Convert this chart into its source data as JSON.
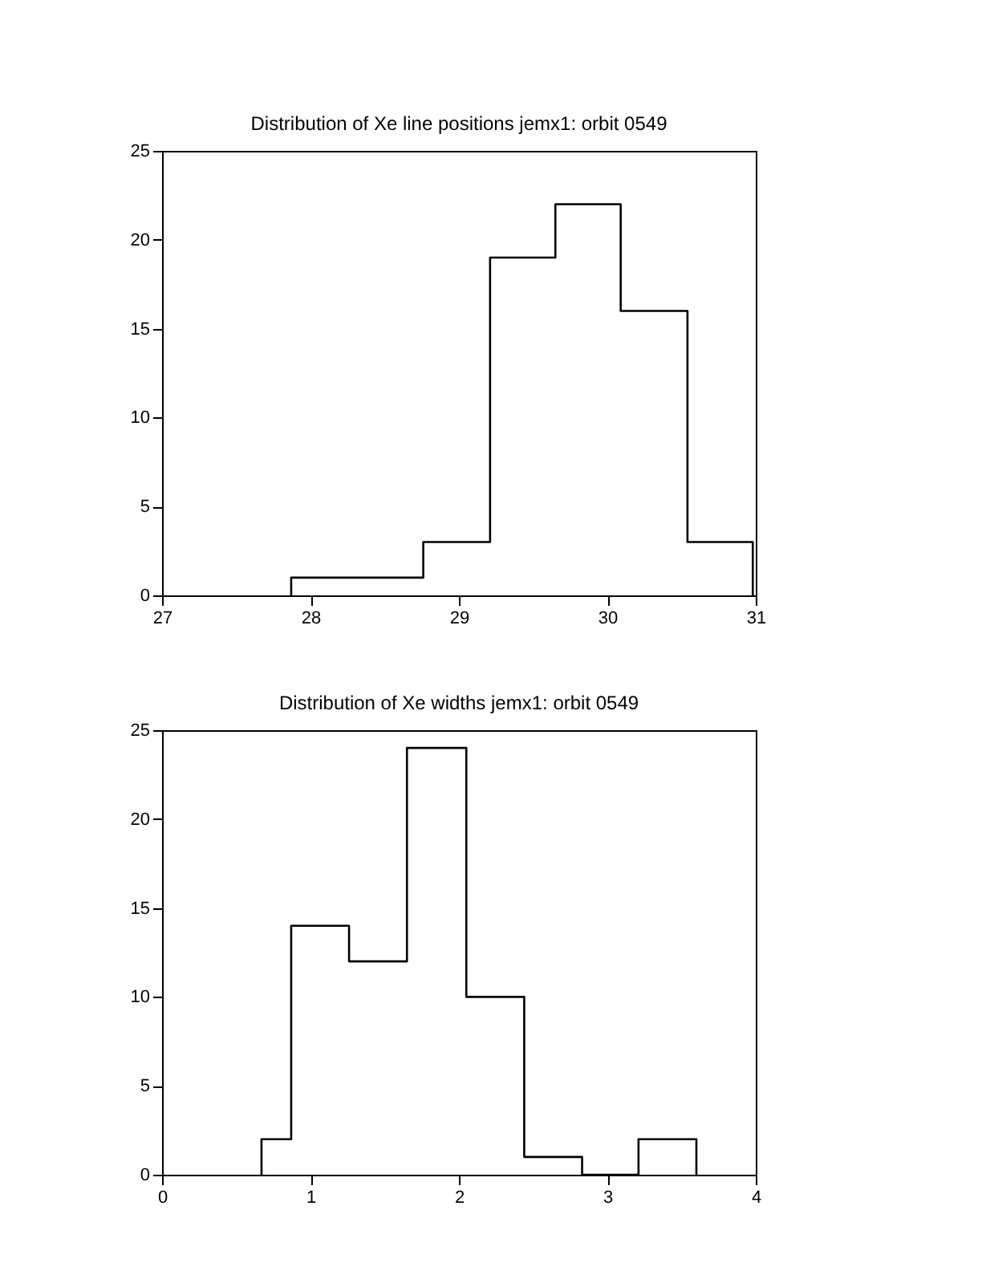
{
  "chart_data": [
    {
      "type": "histogram",
      "title": "Distribution of Xe line positions jemx1: orbit 0549",
      "bins": [
        27.87,
        28.31,
        28.76,
        29.21,
        29.65,
        30.09,
        30.54,
        30.98
      ],
      "values": [
        1,
        1,
        3,
        19,
        22,
        16,
        3
      ],
      "color": "#000000",
      "xlim": [
        27,
        31
      ],
      "xticks": [
        27,
        28,
        29,
        30,
        31
      ],
      "ylim": [
        0,
        25
      ],
      "yticks": [
        0,
        5,
        10,
        15,
        20,
        25
      ],
      "grid": false
    },
    {
      "type": "histogram",
      "title": "Distribution of Xe widths jemx1: orbit 0549",
      "bins": [
        0.67,
        0.87,
        1.26,
        1.65,
        2.05,
        2.44,
        2.83,
        3.21,
        3.6
      ],
      "values": [
        2,
        14,
        12,
        24,
        10,
        1,
        0,
        2
      ],
      "color": "#000000",
      "xlim": [
        0,
        4
      ],
      "xticks": [
        0,
        1,
        2,
        3,
        4
      ],
      "ylim": [
        0,
        25
      ],
      "yticks": [
        0,
        5,
        10,
        15,
        20,
        25
      ],
      "grid": false
    }
  ]
}
